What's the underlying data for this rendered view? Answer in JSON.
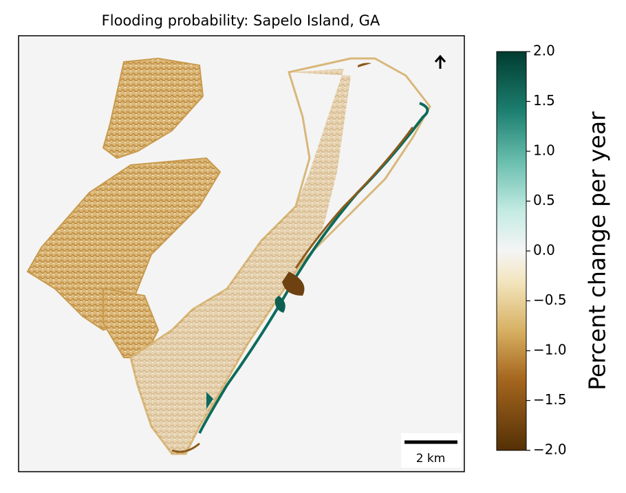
{
  "map": {
    "title": "Flooding probability: Sapelo Island, GA",
    "scale_bar_label": "2 km",
    "colorbar": {
      "label": "Percent change per year",
      "lim": [
        -2,
        2
      ],
      "ticks": [
        {
          "value": 2,
          "label": "2.0"
        },
        {
          "value": 1.5,
          "label": "1.5"
        },
        {
          "value": 1,
          "label": "1.0"
        },
        {
          "value": 0.5,
          "label": "0.5"
        },
        {
          "value": 0,
          "label": "0.0"
        },
        {
          "value": -0.5,
          "label": "−0.5"
        },
        {
          "value": -1,
          "label": "−1.0"
        },
        {
          "value": -1.5,
          "label": "−1.5"
        },
        {
          "value": -2,
          "label": "−2.0"
        }
      ]
    }
  }
}
